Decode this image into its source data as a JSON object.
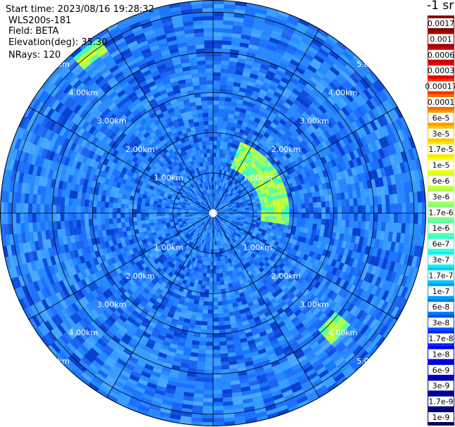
{
  "header": {
    "start_time": "Start time: 2023/08/16 19:28:32",
    "instrument": "WLS200s-181",
    "field": "Field: BETA",
    "elevation": "Elevation(deg): 35.30",
    "nrays": "NRays: 120"
  },
  "colorbar": {
    "unit_label": "-1 sr",
    "labels": [
      "0.0017",
      "0.001",
      "0.0006",
      "0.0003",
      "0.00017",
      "0.0001",
      "6e-5",
      "3e-5",
      "1.7e-5",
      "1e-5",
      "6e-6",
      "3e-6",
      "1.7e-6",
      "1e-6",
      "6e-7",
      "3e-7",
      "1.7e-7",
      "1e-7",
      "6e-8",
      "3e-8",
      "1.7e-8",
      "1e-8",
      "6e-9",
      "3e-9",
      "1.7e-9",
      "1e-9"
    ],
    "colors": [
      "#880000",
      "#a80000",
      "#cc0000",
      "#e80000",
      "#ff3000",
      "#ff6a00",
      "#ff9a00",
      "#ffc400",
      "#ffe800",
      "#f4ff10",
      "#d0ff30",
      "#a8ff58",
      "#80ff80",
      "#58ffa8",
      "#30ffd0",
      "#10f0f8",
      "#00c8ff",
      "#00a0ff",
      "#0078ff",
      "#0050ff",
      "#0028ff",
      "#0000f0",
      "#0000c8",
      "#0000a0",
      "#000080",
      "#000060"
    ]
  },
  "chart_data": {
    "type": "polar-ppi",
    "field": "BETA",
    "unit": "sr-1",
    "range_rings_km": [
      "1.00km",
      "2.00km",
      "3.00km",
      "4.00km",
      "5.00km"
    ],
    "max_range_km": 5.3,
    "n_rays": 120,
    "azimuth_spokes_deg": [
      0,
      30,
      60,
      90,
      120,
      150,
      180,
      210,
      240,
      270,
      300,
      330
    ],
    "background_level": "3e-8 to 1e-7",
    "features": [
      {
        "description_level": "1e-6 to 1e-5",
        "range_km": [
          1.2,
          1.9
        ],
        "azimuth_deg": [
          20,
          100
        ]
      },
      {
        "description_level": "6e-7 to 1.7e-6",
        "range_km": [
          4.8,
          5.2
        ],
        "azimuth_deg": [
          318,
          326
        ]
      },
      {
        "description_level": "6e-7 to 1.7e-6",
        "range_km": [
          3.9,
          4.4
        ],
        "azimuth_deg": [
          128,
          137
        ]
      }
    ]
  }
}
